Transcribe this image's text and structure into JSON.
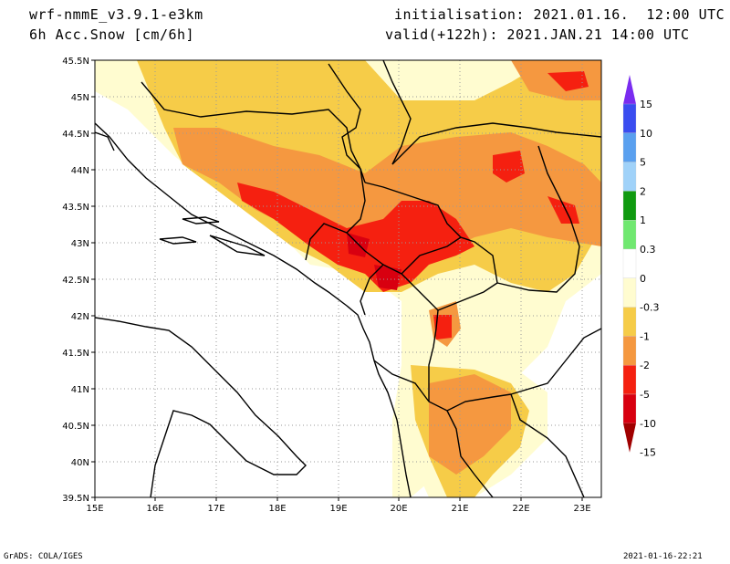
{
  "header": {
    "model": "wrf-nmmE_v3.9.1-e3km",
    "field": "6h Acc.Snow [cm/6h]",
    "init": "initialisation: 2021.01.16.  12:00 UTC",
    "valid": "valid(+122h): 2021.JAN.21 14:00 UTC"
  },
  "axes": {
    "lat_labels": [
      "45.5N",
      "45N",
      "44.5N",
      "44N",
      "43.5N",
      "43N",
      "42.5N",
      "42N",
      "41.5N",
      "41N",
      "40.5N",
      "40N",
      "39.5N"
    ],
    "lon_labels": [
      "15E",
      "16E",
      "17E",
      "18E",
      "19E",
      "20E",
      "21E",
      "22E",
      "23E"
    ],
    "lat_range": [
      39.5,
      45.5
    ],
    "lon_range": [
      15,
      23.3
    ]
  },
  "colorbar": {
    "labels": [
      "15",
      "10",
      "5",
      "2",
      "1",
      "0.3",
      "0",
      "-0.3",
      "-1",
      "-2",
      "-5",
      "-10",
      "-15"
    ],
    "colors": [
      "#7a2cf0",
      "#3a4df0",
      "#5aa0ef",
      "#a0d2f9",
      "#109a10",
      "#70e870",
      "#ffffff",
      "#fffcd0",
      "#f6cc48",
      "#f59840",
      "#f52010",
      "#d80010",
      "#a00000"
    ]
  },
  "footer": {
    "left": "GrADS: COLA/IGES",
    "right": "2021-01-16-22:21"
  }
}
